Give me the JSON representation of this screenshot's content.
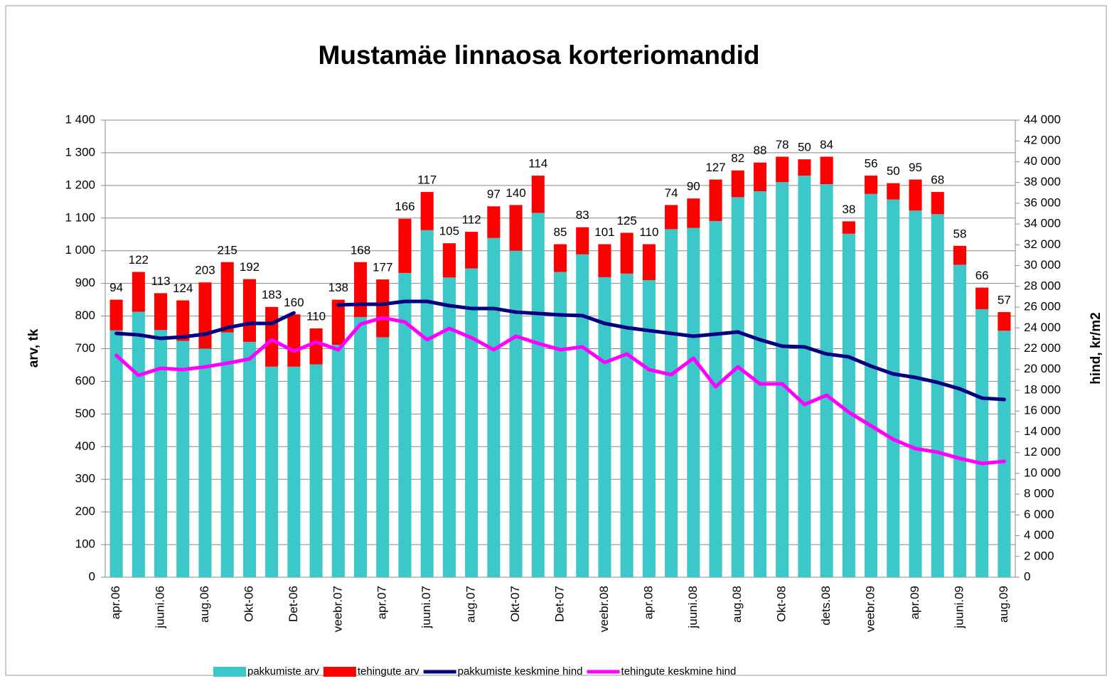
{
  "chart_data": {
    "type": "bar",
    "title": "Mustamäe linnaosa korteriomandid",
    "ylabel": "arv, tk",
    "y2label": "hind, kr/m2",
    "categories": [
      "apr.06",
      null,
      "juuni.06",
      null,
      "aug.06",
      null,
      "Okt-06",
      null,
      "Det-06",
      null,
      "veebr.07",
      null,
      "apr.07",
      null,
      "juuni.07",
      null,
      "aug.07",
      null,
      "Okt-07",
      null,
      "Det-07",
      null,
      "veebr.08",
      null,
      "apr.08",
      null,
      "juuni.08",
      null,
      "aug.08",
      null,
      "Okt-08",
      null,
      "dets.08",
      null,
      "veebr.09",
      null,
      "apr.09",
      null,
      "juuni.09",
      null,
      "aug.09"
    ],
    "series": [
      {
        "name": "pakkumiste arv",
        "color": "#3cc8c8",
        "values": [
          756,
          813,
          757,
          724,
          700,
          750,
          721,
          645,
          645,
          652,
          712,
          797,
          735,
          932,
          1063,
          918,
          946,
          1039,
          1000,
          1116,
          935,
          989,
          919,
          930,
          910,
          1066,
          1070,
          1091,
          1164,
          1182,
          1210,
          1230,
          1204,
          1052,
          1174,
          1157,
          1123,
          1112,
          957,
          821,
          755
        ]
      },
      {
        "name": "tehingute arv",
        "color": "#ff0000",
        "labels": true,
        "values": [
          94,
          122,
          113,
          124,
          203,
          215,
          192,
          183,
          160,
          110,
          138,
          168,
          177,
          166,
          117,
          105,
          112,
          97,
          140,
          114,
          85,
          83,
          101,
          125,
          110,
          74,
          90,
          127,
          82,
          88,
          78,
          50,
          84,
          38,
          56,
          50,
          95,
          68,
          58,
          66,
          57
        ]
      },
      {
        "name": "pakkumiste keskmine hind",
        "color": "#000080",
        "type": "line",
        "axis": "y2",
        "values": [
          23470,
          23330,
          22990,
          23130,
          23400,
          24020,
          24430,
          24430,
          25450,
          null,
          26210,
          26280,
          26280,
          26550,
          26550,
          26140,
          25870,
          25870,
          25520,
          25390,
          25250,
          25180,
          24430,
          24020,
          23740,
          23470,
          23200,
          23400,
          23610,
          22860,
          22240,
          22170,
          21490,
          21210,
          20320,
          19570,
          19230,
          18750,
          18130,
          17240,
          17110
        ]
      },
      {
        "name": "tehingute keskmine hind",
        "color": "#ff00ff",
        "type": "line",
        "axis": "y2",
        "values": [
          21350,
          19430,
          20120,
          19980,
          20250,
          20600,
          21010,
          22860,
          21760,
          22650,
          21900,
          24360,
          24980,
          24570,
          22860,
          23950,
          23060,
          21900,
          23200,
          22510,
          21900,
          22170,
          20670,
          21490,
          19980,
          19500,
          21080,
          18340,
          20250,
          18610,
          18610,
          16630,
          17520,
          15880,
          14580,
          13270,
          12380,
          12040,
          11430,
          10950,
          11150
        ]
      }
    ],
    "ylim": [
      0,
      1400
    ],
    "yticks": [
      0,
      100,
      200,
      300,
      400,
      500,
      600,
      700,
      800,
      900,
      {
        "value": 1000,
        "label": "1 000"
      },
      {
        "value": 1100,
        "label": "1 100"
      },
      {
        "value": 1200,
        "label": "1 200"
      },
      {
        "value": 1300,
        "label": "1 300"
      },
      {
        "value": 1400,
        "label": "1 400"
      }
    ],
    "y2lim": [
      0,
      44000
    ],
    "y2ticks": [
      0,
      {
        "value": 2000,
        "label": "2 000"
      },
      {
        "value": 4000,
        "label": "4 000"
      },
      {
        "value": 6000,
        "label": "6 000"
      },
      {
        "value": 8000,
        "label": "8 000"
      },
      {
        "value": 10000,
        "label": "10 000"
      },
      {
        "value": 12000,
        "label": "12 000"
      },
      {
        "value": 14000,
        "label": "14 000"
      },
      {
        "value": 16000,
        "label": "16 000"
      },
      {
        "value": 18000,
        "label": "18 000"
      },
      {
        "value": 20000,
        "label": "20 000"
      },
      {
        "value": 22000,
        "label": "22 000"
      },
      {
        "value": 24000,
        "label": "24 000"
      },
      {
        "value": 26000,
        "label": "26 000"
      },
      {
        "value": 28000,
        "label": "28 000"
      },
      {
        "value": 30000,
        "label": "30 000"
      },
      {
        "value": 32000,
        "label": "32 000"
      },
      {
        "value": 34000,
        "label": "34 000"
      },
      {
        "value": 36000,
        "label": "36 000"
      },
      {
        "value": 38000,
        "label": "38 000"
      },
      {
        "value": 40000,
        "label": "40 000"
      },
      {
        "value": 42000,
        "label": "42 000"
      },
      {
        "value": 44000,
        "label": "44 000"
      }
    ],
    "grid": true,
    "legend": "bottom"
  }
}
